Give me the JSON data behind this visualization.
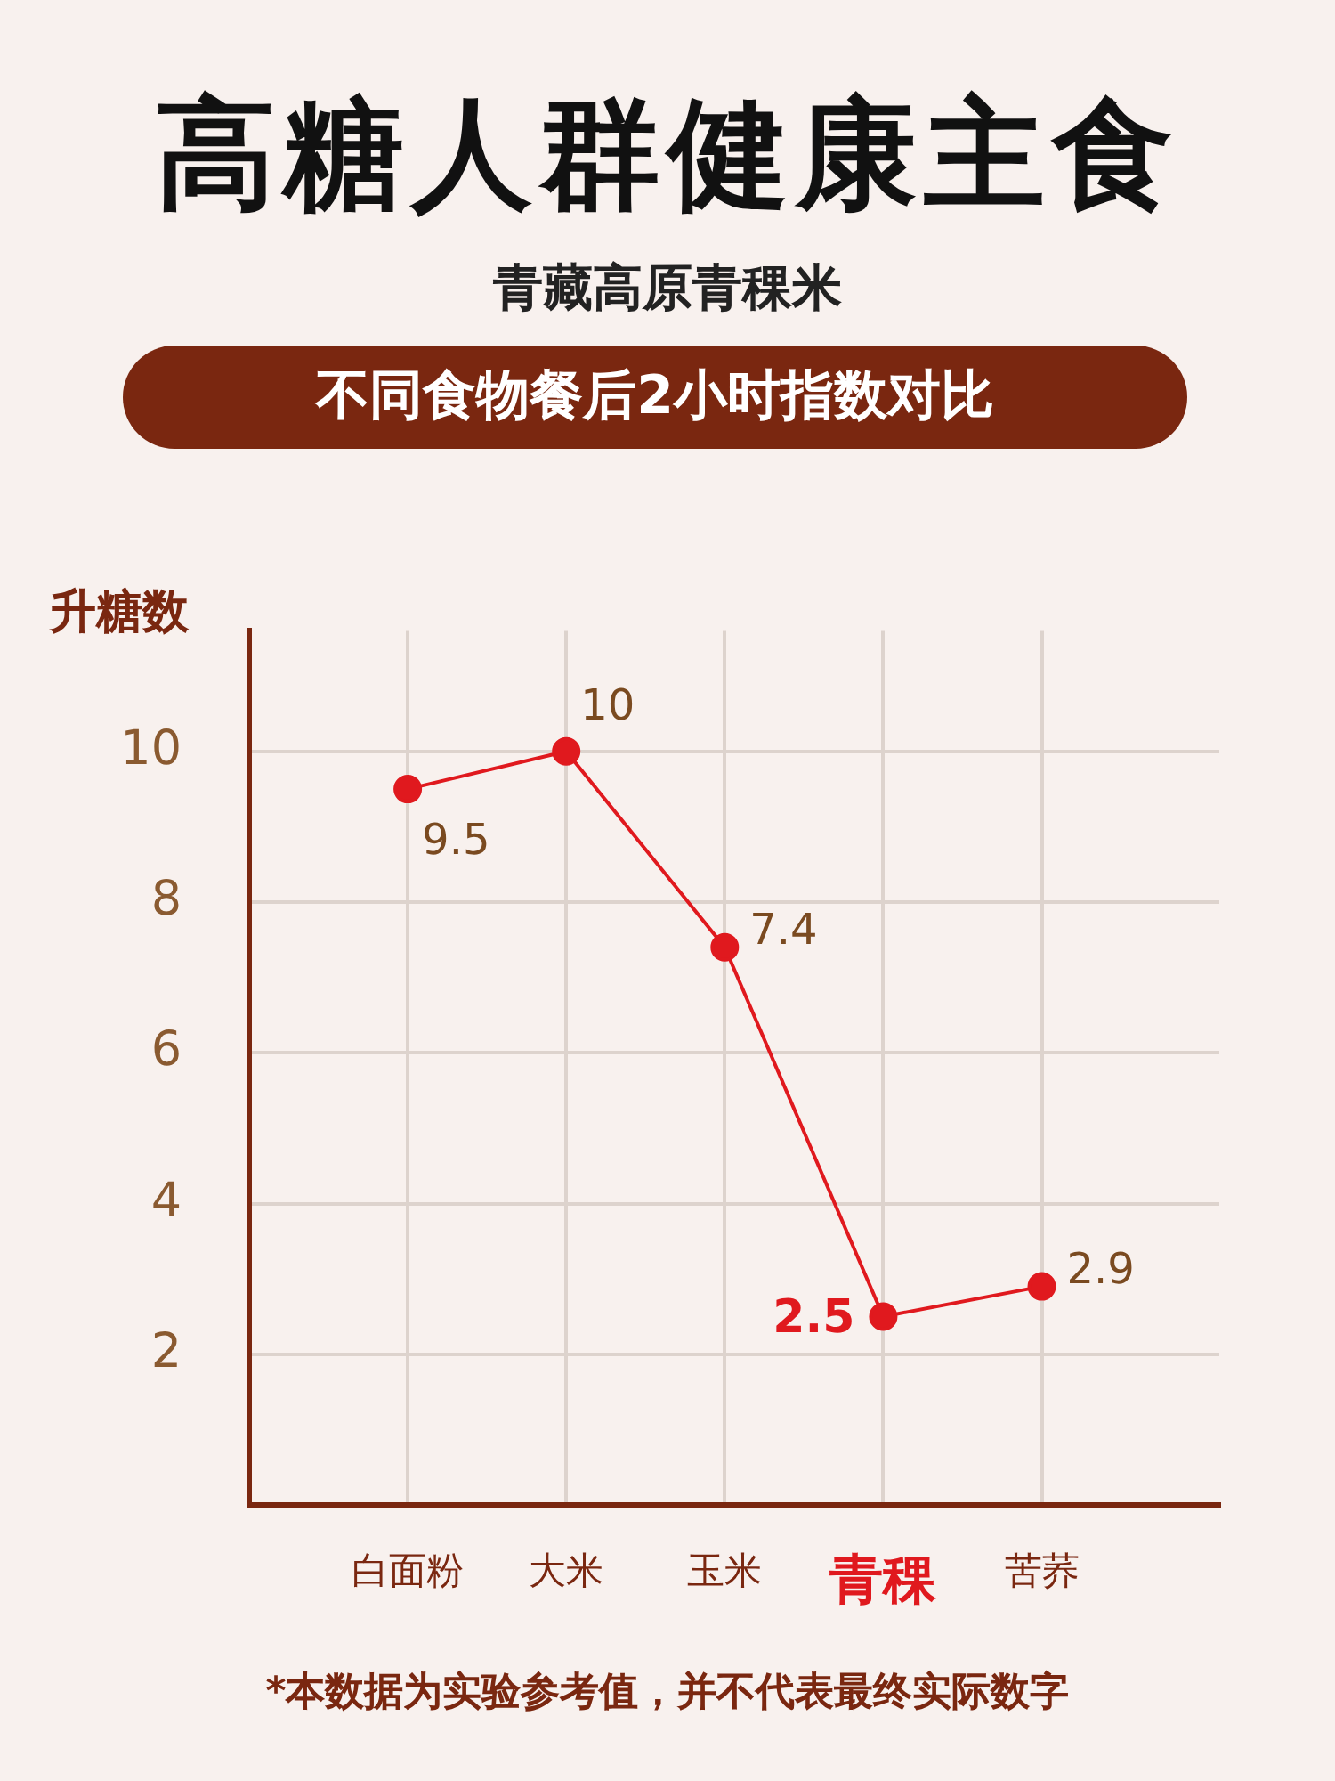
{
  "chart_data": {
    "type": "line",
    "title": "高糖人群健康主食",
    "subtitle": "青藏高原青稞米",
    "ylabel": "升糖数",
    "annotations": [
      "不同食物餐后2小时指数对比",
      "*本数据为实验参考值，并不代表最终实际数字"
    ],
    "categories": [
      "白面粉",
      "大米",
      "玉米",
      "青稞",
      "苦荞"
    ],
    "series": [
      {
        "color": "#e0191e",
        "values": [
          9.5,
          10,
          7.4,
          2.5,
          2.9
        ]
      }
    ],
    "ylim": [
      0,
      11.6
    ],
    "yticks": [
      2,
      4,
      6,
      8,
      10
    ],
    "grid": true,
    "legend": false,
    "marker": "circle",
    "line_style": "solid",
    "data_labels": true
  }
}
